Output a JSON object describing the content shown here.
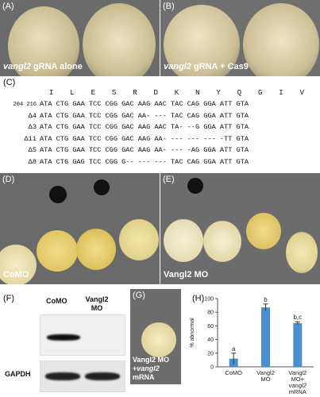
{
  "panels": {
    "A": {
      "label": "(A)",
      "caption_gene": "vangl2",
      "caption_rest": " gRNA alone"
    },
    "B": {
      "label": "(B)",
      "caption_gene": "vangl2",
      "caption_rest": " gRNA + Cas9"
    },
    "C": {
      "label": "(C)",
      "amino_acids": [
        "I",
        "L",
        "E",
        "S",
        "R",
        "D",
        "K",
        "N",
        "Y",
        "Q",
        "G",
        "I",
        "V"
      ],
      "rows": [
        {
          "label": "204 216",
          "seq": "ATA CTG GAA TCC CGG GAC AAG AAC TAC CAG GGA ATT GTA"
        },
        {
          "label": "Δ4",
          "seq": "ATA CTG GAA TCC CGG GAC AA- --- TAC CAG GGA ATT GTA"
        },
        {
          "label": "Δ3",
          "seq": "ATA CTG GAA TCC CGG GAC AAG AAC TA- --G GGA ATT GTA"
        },
        {
          "label": "Δ11",
          "seq": "ATA CTG GAA TCC CGG GAC AAG AA- --- --- --- -TT GTA"
        },
        {
          "label": "Δ5",
          "seq": "ATA CTG GAA TCC CGG GAC AAG AA- --- -AG GGA ATT GTA"
        },
        {
          "label": "Δ8",
          "seq": "ATA CTG GAG TCC CGG G-- --- --- TAC CAG GGA ATT GTA"
        }
      ]
    },
    "D": {
      "label": "(D)",
      "caption": "CoMO"
    },
    "E": {
      "label": "(E)",
      "caption": "Vangl2 MO"
    },
    "F": {
      "label": "(F)",
      "lane1": "CoMO",
      "lane2": "Vangl2 MO",
      "loading": "GAPDH"
    },
    "G": {
      "label": "(G)",
      "caption_l1": "Vangl2 MO",
      "caption_l2_pre": "+",
      "caption_l2_gene": "vangl2",
      "caption_l3": "mRNA"
    },
    "H": {
      "label": "(H)"
    }
  },
  "chart_data": {
    "type": "bar",
    "ylabel": "% abnormal",
    "ylim": [
      0,
      100
    ],
    "yticks": [
      0,
      20,
      40,
      60,
      80,
      100
    ],
    "categories": [
      "CoMO",
      "Vangl2 MO",
      "Vangl2 MO+ vangl2 mRNA"
    ],
    "values": [
      12,
      87,
      64
    ],
    "errors": [
      8,
      5,
      2
    ],
    "significance": [
      "a",
      "b",
      "b,c"
    ],
    "bar_color": "#4a8fd0"
  }
}
